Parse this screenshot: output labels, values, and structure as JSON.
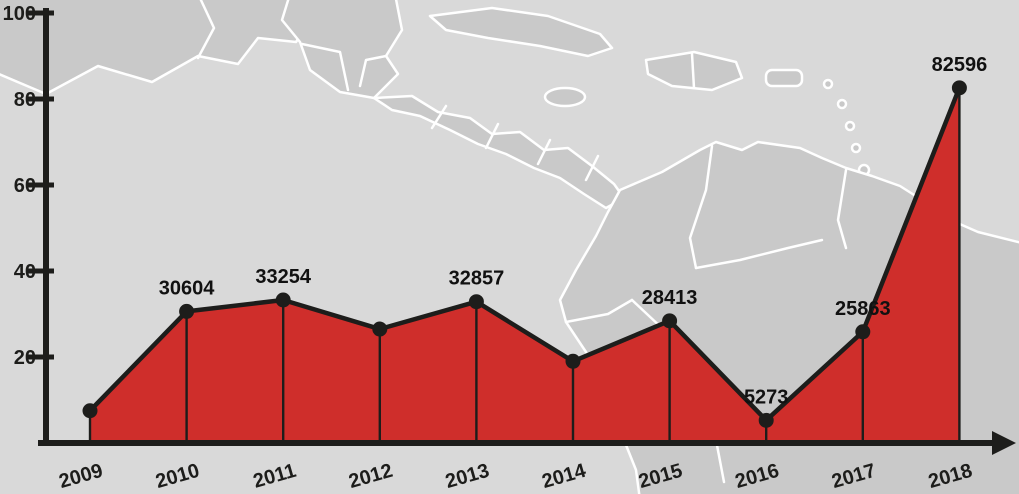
{
  "chart_data": {
    "type": "area",
    "title": "",
    "categories": [
      "2009",
      "2010",
      "2011",
      "2012",
      "2013",
      "2014",
      "2015",
      "2016",
      "2017",
      "2018"
    ],
    "values": [
      7500,
      30604,
      33254,
      26500,
      32857,
      19000,
      28413,
      5273,
      25863,
      82596
    ],
    "point_labels": [
      "",
      "30604",
      "33254",
      "",
      "32857",
      "",
      "28413",
      "5273",
      "25863",
      "82596"
    ],
    "ylim": [
      0,
      100000
    ],
    "yticks_axis_units": [
      20,
      40,
      60,
      80,
      100
    ],
    "y_axis_unit": 1000,
    "grid": false,
    "legend": false,
    "background_map": "central-america-and-south-america",
    "colors": {
      "area_fill": "#cf2e2b",
      "line": "#1d1d1b",
      "point": "#1d1d1b",
      "axis": "#1d1d1b",
      "label": "#111111",
      "ocean": "#d9d9d9",
      "land": "#c9c9c9",
      "map_border": "#ffffff"
    }
  }
}
